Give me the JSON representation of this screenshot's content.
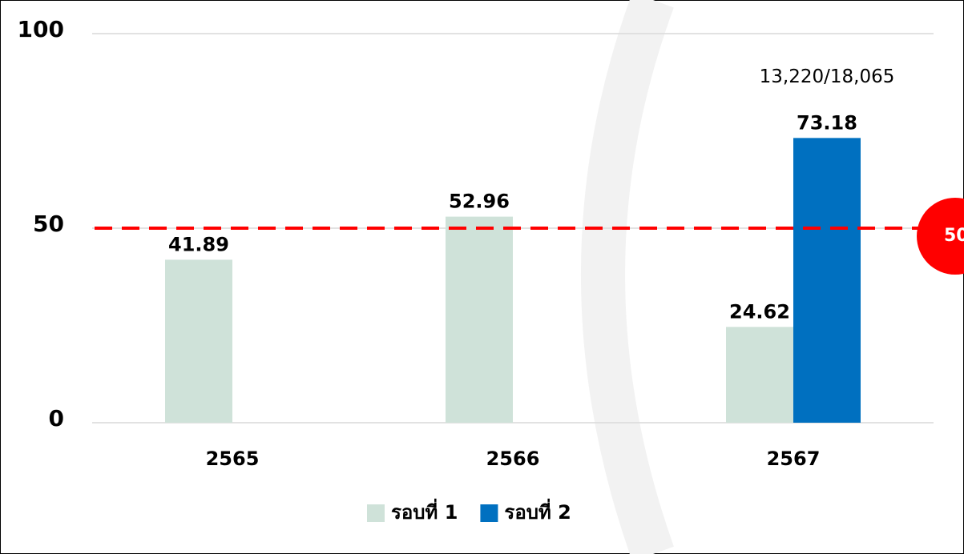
{
  "chart_data": {
    "type": "bar",
    "categories": [
      "2565",
      "2566",
      "2567"
    ],
    "series": [
      {
        "name": "รอบที่ 1",
        "color": "#cfe2d9",
        "values": [
          41.89,
          52.96,
          24.62
        ]
      },
      {
        "name": "รอบที่ 2",
        "color": "#0070c0",
        "values": [
          null,
          null,
          73.18
        ],
        "annotations": [
          null,
          null,
          "13,220/18,065"
        ]
      }
    ],
    "ylim": [
      0,
      100
    ],
    "yticks": [
      0,
      50,
      100
    ],
    "grid": true,
    "reference_line": {
      "value": 50,
      "color": "#ff0000"
    },
    "legend": "bottom"
  }
}
